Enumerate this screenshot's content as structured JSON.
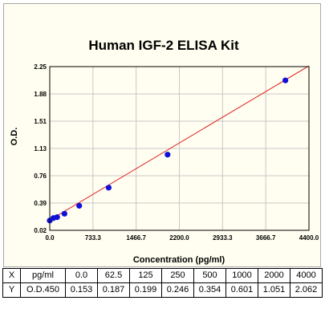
{
  "chart_data": {
    "type": "scatter",
    "title": "Human IGF-2 ELISA Kit",
    "xlabel": "Concentration (pg/ml)",
    "ylabel": "O.D.",
    "xlim": [
      0,
      4400
    ],
    "ylim": [
      0.02,
      2.25
    ],
    "x_ticks": [
      "0.0",
      "733.3",
      "1466.7",
      "2200.0",
      "2933.3",
      "3666.7",
      "4400.0"
    ],
    "y_ticks": [
      "0.02",
      "0.39",
      "0.76",
      "1.13",
      "1.51",
      "1.88",
      "2.25"
    ],
    "grid": true,
    "points": [
      {
        "x": 0,
        "y": 0.153
      },
      {
        "x": 62.5,
        "y": 0.187
      },
      {
        "x": 125,
        "y": 0.199
      },
      {
        "x": 250,
        "y": 0.246
      },
      {
        "x": 500,
        "y": 0.354
      },
      {
        "x": 1000,
        "y": 0.601
      },
      {
        "x": 2000,
        "y": 1.051
      },
      {
        "x": 4000,
        "y": 2.062
      }
    ],
    "fit_line": {
      "x": [
        0,
        4400
      ],
      "y": [
        0.16,
        2.26
      ]
    },
    "colors": {
      "points": "#1010d8",
      "fit_line": "#e02020",
      "grid": "#c8c8c8",
      "background": "#fffef0"
    }
  },
  "table": {
    "header": [
      "X",
      "pg/ml",
      "0.0",
      "62.5",
      "125",
      "250",
      "500",
      "1000",
      "2000",
      "4000"
    ],
    "row": [
      "Y",
      "O.D.450",
      "0.153",
      "0.187",
      "0.199",
      "0.246",
      "0.354",
      "0.601",
      "1.051",
      "2.062"
    ]
  }
}
